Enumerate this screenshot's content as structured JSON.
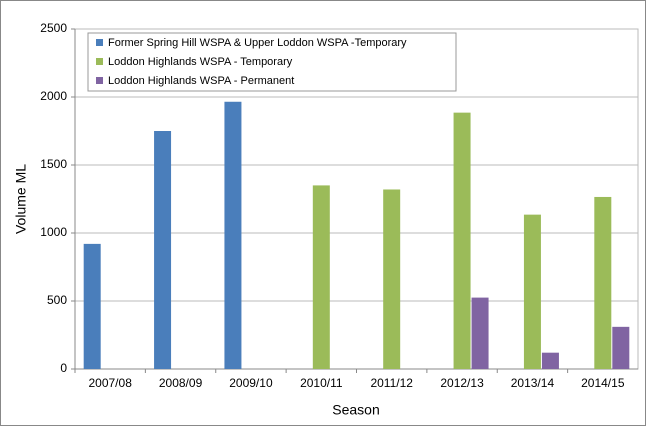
{
  "chart_data": {
    "type": "bar",
    "categories": [
      "2007/08",
      "2008/09",
      "2009/10",
      "2010/11",
      "2011/12",
      "2012/13",
      "2013/14",
      "2014/15"
    ],
    "series": [
      {
        "name": "Former Spring Hill WSPA & Upper Loddon  WSPA -Temporary",
        "color": "#4a7ebb",
        "values": [
          920,
          1750,
          1965,
          null,
          null,
          null,
          null,
          null
        ]
      },
      {
        "name": "Loddon Highlands WSPA - Temporary",
        "color": "#9bbb59",
        "values": [
          null,
          null,
          null,
          1350,
          1320,
          1885,
          1135,
          1265
        ]
      },
      {
        "name": "Loddon Highlands WSPA - Permanent",
        "color": "#8064a2",
        "values": [
          null,
          null,
          null,
          null,
          null,
          525,
          120,
          310
        ]
      }
    ],
    "ylim": [
      0,
      2500
    ],
    "yticks": [
      0,
      500,
      1000,
      1500,
      2000,
      2500
    ],
    "ylabel": "Volume ML",
    "xlabel": "Season",
    "legend": "upper left"
  }
}
